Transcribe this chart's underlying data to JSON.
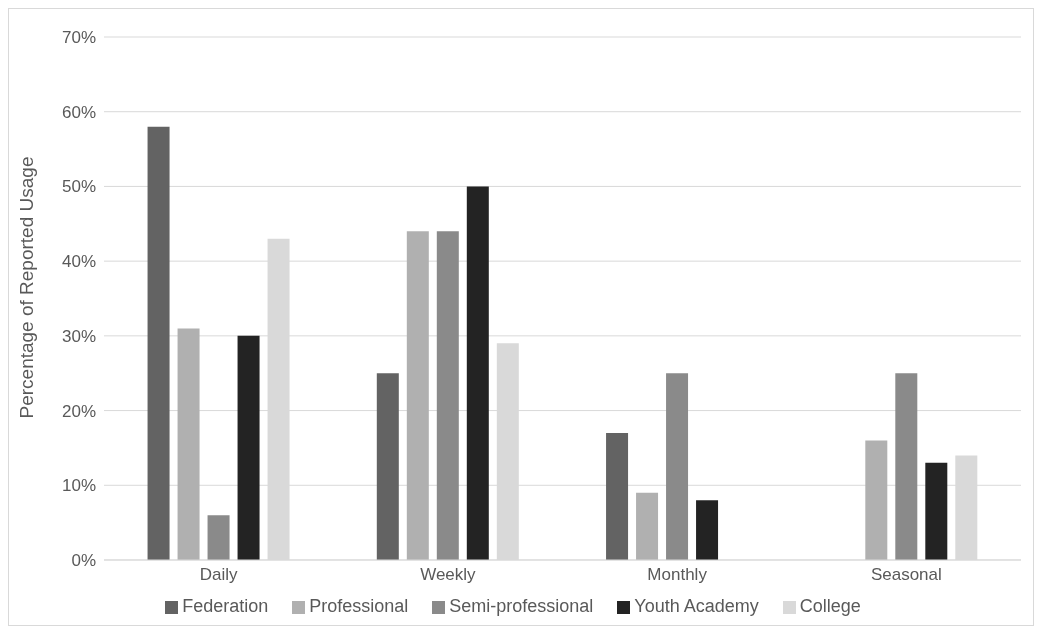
{
  "chart_data": {
    "type": "bar",
    "ylabel": "Percentage of Reported Usage",
    "categories": [
      "Daily",
      "Weekly",
      "Monthly",
      "Seasonal"
    ],
    "series": [
      {
        "name": "Federation",
        "color": "#636363",
        "values": [
          58,
          25,
          17,
          0
        ]
      },
      {
        "name": "Professional",
        "color": "#b0b0b0",
        "values": [
          31,
          44,
          9,
          16
        ]
      },
      {
        "name": "Semi-professional",
        "color": "#8a8a8a",
        "values": [
          6,
          44,
          25,
          25
        ]
      },
      {
        "name": "Youth Academy",
        "color": "#232323",
        "values": [
          30,
          50,
          8,
          13
        ]
      },
      {
        "name": "College",
        "color": "#d9d9d9",
        "values": [
          43,
          29,
          0,
          14
        ]
      }
    ],
    "ylim": [
      0,
      70
    ],
    "yticks": [
      {
        "value": 0,
        "label": "0%"
      },
      {
        "value": 10,
        "label": "10%"
      },
      {
        "value": 20,
        "label": "20%"
      },
      {
        "value": 30,
        "label": "30%"
      },
      {
        "value": 40,
        "label": "40%"
      },
      {
        "value": 50,
        "label": "50%"
      },
      {
        "value": 60,
        "label": "60%"
      },
      {
        "value": 70,
        "label": "70%"
      }
    ],
    "grid": "y",
    "legend": "bottom"
  }
}
